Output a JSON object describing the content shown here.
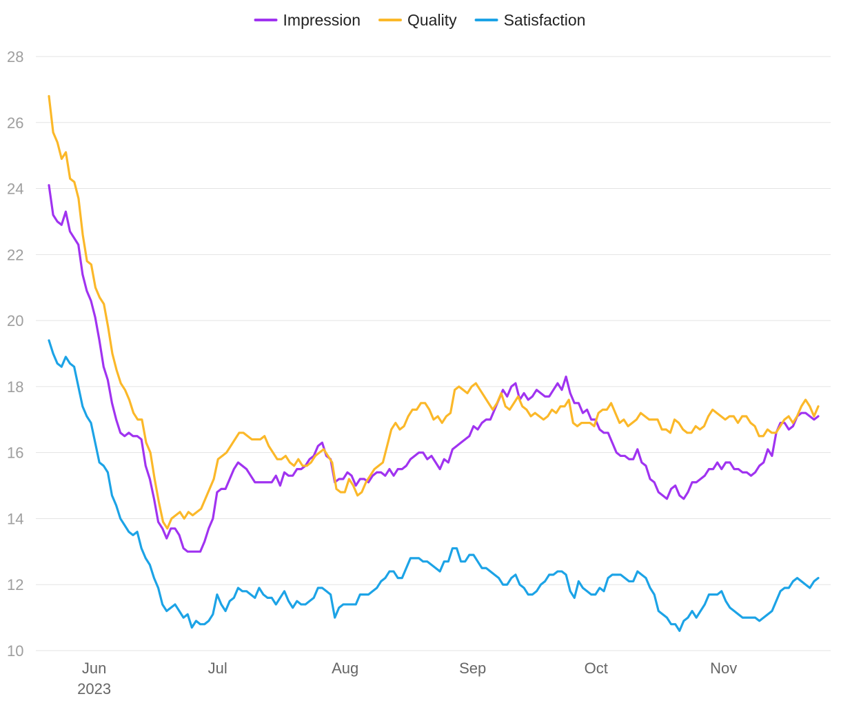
{
  "chart_data": {
    "type": "line",
    "title": "",
    "xlabel": "",
    "ylabel": "",
    "ylim": [
      10,
      28
    ],
    "yticks": [
      10,
      12,
      14,
      16,
      18,
      20,
      22,
      24,
      26,
      28
    ],
    "grid": true,
    "legend_position": "top-center",
    "x_start": "2023-05-21",
    "x_end": "2023-11-24",
    "x_tick_labels": [
      {
        "date": "2023-06-01",
        "label": "Jun",
        "sublabel": "2023"
      },
      {
        "date": "2023-07-01",
        "label": "Jul"
      },
      {
        "date": "2023-08-01",
        "label": "Aug"
      },
      {
        "date": "2023-09-01",
        "label": "Sep"
      },
      {
        "date": "2023-10-01",
        "label": "Oct"
      },
      {
        "date": "2023-11-01",
        "label": "Nov"
      }
    ],
    "series": [
      {
        "name": "Impression",
        "color": "#a033f0",
        "values": [
          24.1,
          23.2,
          23.0,
          22.9,
          23.3,
          22.7,
          22.5,
          22.3,
          21.4,
          20.9,
          20.6,
          20.1,
          19.4,
          18.6,
          18.2,
          17.5,
          17.0,
          16.6,
          16.5,
          16.6,
          16.5,
          16.5,
          16.4,
          15.6,
          15.2,
          14.6,
          13.9,
          13.7,
          13.4,
          13.7,
          13.7,
          13.5,
          13.1,
          13.0,
          13.0,
          13.0,
          13.0,
          13.3,
          13.7,
          14.0,
          14.8,
          14.9,
          14.9,
          15.2,
          15.5,
          15.7,
          15.6,
          15.5,
          15.3,
          15.1,
          15.1,
          15.1,
          15.1,
          15.1,
          15.3,
          15.0,
          15.4,
          15.3,
          15.3,
          15.5,
          15.5,
          15.6,
          15.8,
          15.9,
          16.2,
          16.3,
          15.9,
          15.8,
          15.1,
          15.2,
          15.2,
          15.4,
          15.3,
          15.0,
          15.2,
          15.2,
          15.1,
          15.3,
          15.4,
          15.4,
          15.3,
          15.5,
          15.3,
          15.5,
          15.5,
          15.6,
          15.8,
          15.9,
          16.0,
          16.0,
          15.8,
          15.9,
          15.7,
          15.5,
          15.8,
          15.7,
          16.1,
          16.2,
          16.3,
          16.4,
          16.5,
          16.8,
          16.7,
          16.9,
          17.0,
          17.0,
          17.3,
          17.6,
          17.9,
          17.7,
          18.0,
          18.1,
          17.6,
          17.8,
          17.6,
          17.7,
          17.9,
          17.8,
          17.7,
          17.7,
          17.9,
          18.1,
          17.9,
          18.3,
          17.8,
          17.5,
          17.5,
          17.2,
          17.3,
          17.0,
          17.0,
          16.7,
          16.6,
          16.6,
          16.3,
          16.0,
          15.9,
          15.9,
          15.8,
          15.8,
          16.1,
          15.7,
          15.6,
          15.2,
          15.1,
          14.8,
          14.7,
          14.6,
          14.9,
          15.0,
          14.7,
          14.6,
          14.8,
          15.1,
          15.1,
          15.2,
          15.3,
          15.5,
          15.5,
          15.7,
          15.5,
          15.7,
          15.7,
          15.5,
          15.5,
          15.4,
          15.4,
          15.3,
          15.4,
          15.6,
          15.7,
          16.1,
          15.9,
          16.6,
          16.9,
          16.9,
          16.7,
          16.8,
          17.1,
          17.2,
          17.2,
          17.1,
          17.0,
          17.1
        ]
      },
      {
        "name": "Quality",
        "color": "#fbb829",
        "values": [
          26.8,
          25.7,
          25.4,
          24.9,
          25.1,
          24.3,
          24.2,
          23.7,
          22.6,
          21.8,
          21.7,
          21.0,
          20.7,
          20.5,
          19.8,
          19.0,
          18.5,
          18.1,
          17.9,
          17.6,
          17.2,
          17.0,
          17.0,
          16.3,
          16.0,
          15.2,
          14.5,
          13.9,
          13.7,
          14.0,
          14.1,
          14.2,
          14.0,
          14.2,
          14.1,
          14.2,
          14.3,
          14.6,
          14.9,
          15.2,
          15.8,
          15.9,
          16.0,
          16.2,
          16.4,
          16.6,
          16.6,
          16.5,
          16.4,
          16.4,
          16.4,
          16.5,
          16.2,
          16.0,
          15.8,
          15.8,
          15.9,
          15.7,
          15.6,
          15.8,
          15.6,
          15.6,
          15.7,
          15.9,
          16.0,
          16.1,
          15.9,
          15.7,
          14.9,
          14.8,
          14.8,
          15.2,
          15.0,
          14.7,
          14.8,
          15.1,
          15.3,
          15.5,
          15.6,
          15.7,
          16.2,
          16.7,
          16.9,
          16.7,
          16.8,
          17.1,
          17.3,
          17.3,
          17.5,
          17.5,
          17.3,
          17.0,
          17.1,
          16.9,
          17.1,
          17.2,
          17.9,
          18.0,
          17.9,
          17.8,
          18.0,
          18.1,
          17.9,
          17.7,
          17.5,
          17.3,
          17.5,
          17.8,
          17.4,
          17.3,
          17.5,
          17.7,
          17.4,
          17.3,
          17.1,
          17.2,
          17.1,
          17.0,
          17.1,
          17.3,
          17.2,
          17.4,
          17.4,
          17.6,
          16.9,
          16.8,
          16.9,
          16.9,
          16.9,
          16.8,
          17.2,
          17.3,
          17.3,
          17.5,
          17.2,
          16.9,
          17.0,
          16.8,
          16.9,
          17.0,
          17.2,
          17.1,
          17.0,
          17.0,
          17.0,
          16.7,
          16.7,
          16.6,
          17.0,
          16.9,
          16.7,
          16.6,
          16.6,
          16.8,
          16.7,
          16.8,
          17.1,
          17.3,
          17.2,
          17.1,
          17.0,
          17.1,
          17.1,
          16.9,
          17.1,
          17.1,
          16.9,
          16.8,
          16.5,
          16.5,
          16.7,
          16.6,
          16.6,
          16.8,
          17.0,
          17.1,
          16.9,
          17.1,
          17.4,
          17.6,
          17.4,
          17.1,
          17.4
        ]
      },
      {
        "name": "Satisfaction",
        "color": "#1ca3e6",
        "values": [
          19.4,
          19.0,
          18.7,
          18.6,
          18.9,
          18.7,
          18.6,
          18.0,
          17.4,
          17.1,
          16.9,
          16.3,
          15.7,
          15.6,
          15.4,
          14.7,
          14.4,
          14.0,
          13.8,
          13.6,
          13.5,
          13.6,
          13.1,
          12.8,
          12.6,
          12.2,
          11.9,
          11.4,
          11.2,
          11.3,
          11.4,
          11.2,
          11.0,
          11.1,
          10.7,
          10.9,
          10.8,
          10.8,
          10.9,
          11.1,
          11.7,
          11.4,
          11.2,
          11.5,
          11.6,
          11.9,
          11.8,
          11.8,
          11.7,
          11.6,
          11.9,
          11.7,
          11.6,
          11.6,
          11.4,
          11.6,
          11.8,
          11.5,
          11.3,
          11.5,
          11.4,
          11.4,
          11.5,
          11.6,
          11.9,
          11.9,
          11.8,
          11.7,
          11.0,
          11.3,
          11.4,
          11.4,
          11.4,
          11.4,
          11.7,
          11.7,
          11.7,
          11.8,
          11.9,
          12.1,
          12.2,
          12.4,
          12.4,
          12.2,
          12.2,
          12.5,
          12.8,
          12.8,
          12.8,
          12.7,
          12.7,
          12.6,
          12.5,
          12.4,
          12.7,
          12.7,
          13.1,
          13.1,
          12.7,
          12.7,
          12.9,
          12.9,
          12.7,
          12.5,
          12.5,
          12.4,
          12.3,
          12.2,
          12.0,
          12.0,
          12.2,
          12.3,
          12.0,
          11.9,
          11.7,
          11.7,
          11.8,
          12.0,
          12.1,
          12.3,
          12.3,
          12.4,
          12.4,
          12.3,
          11.8,
          11.6,
          12.1,
          11.9,
          11.8,
          11.7,
          11.7,
          11.9,
          11.8,
          12.2,
          12.3,
          12.3,
          12.3,
          12.2,
          12.1,
          12.1,
          12.4,
          12.3,
          12.2,
          11.9,
          11.7,
          11.2,
          11.1,
          11.0,
          10.8,
          10.8,
          10.6,
          10.9,
          11.0,
          11.2,
          11.0,
          11.2,
          11.4,
          11.7,
          11.7,
          11.7,
          11.8,
          11.5,
          11.3,
          11.2,
          11.1,
          11.0,
          11.0,
          11.0,
          11.0,
          10.9,
          11.0,
          11.1,
          11.2,
          11.5,
          11.8,
          11.9,
          11.9,
          12.1,
          12.2,
          12.1,
          12.0,
          11.9,
          12.1,
          12.2
        ]
      }
    ]
  }
}
